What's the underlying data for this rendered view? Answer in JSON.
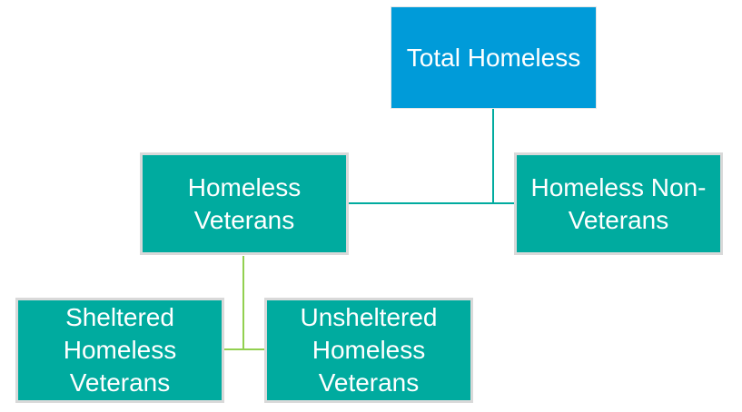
{
  "diagram": {
    "colors": {
      "root_fill": "#009bd9",
      "node_fill": "#00ab9f",
      "node_border": "#d9d9d9",
      "connector_upper": "#00ab9f",
      "connector_lower": "#92d050",
      "text": "#ffffff"
    },
    "nodes": {
      "total": "Total Homeless",
      "veterans": "Homeless Veterans",
      "non_veterans": "Homeless Non-Veterans",
      "sheltered": "Sheltered Homeless Veterans",
      "unsheltered": "Unsheltered Homeless Veterans"
    }
  }
}
